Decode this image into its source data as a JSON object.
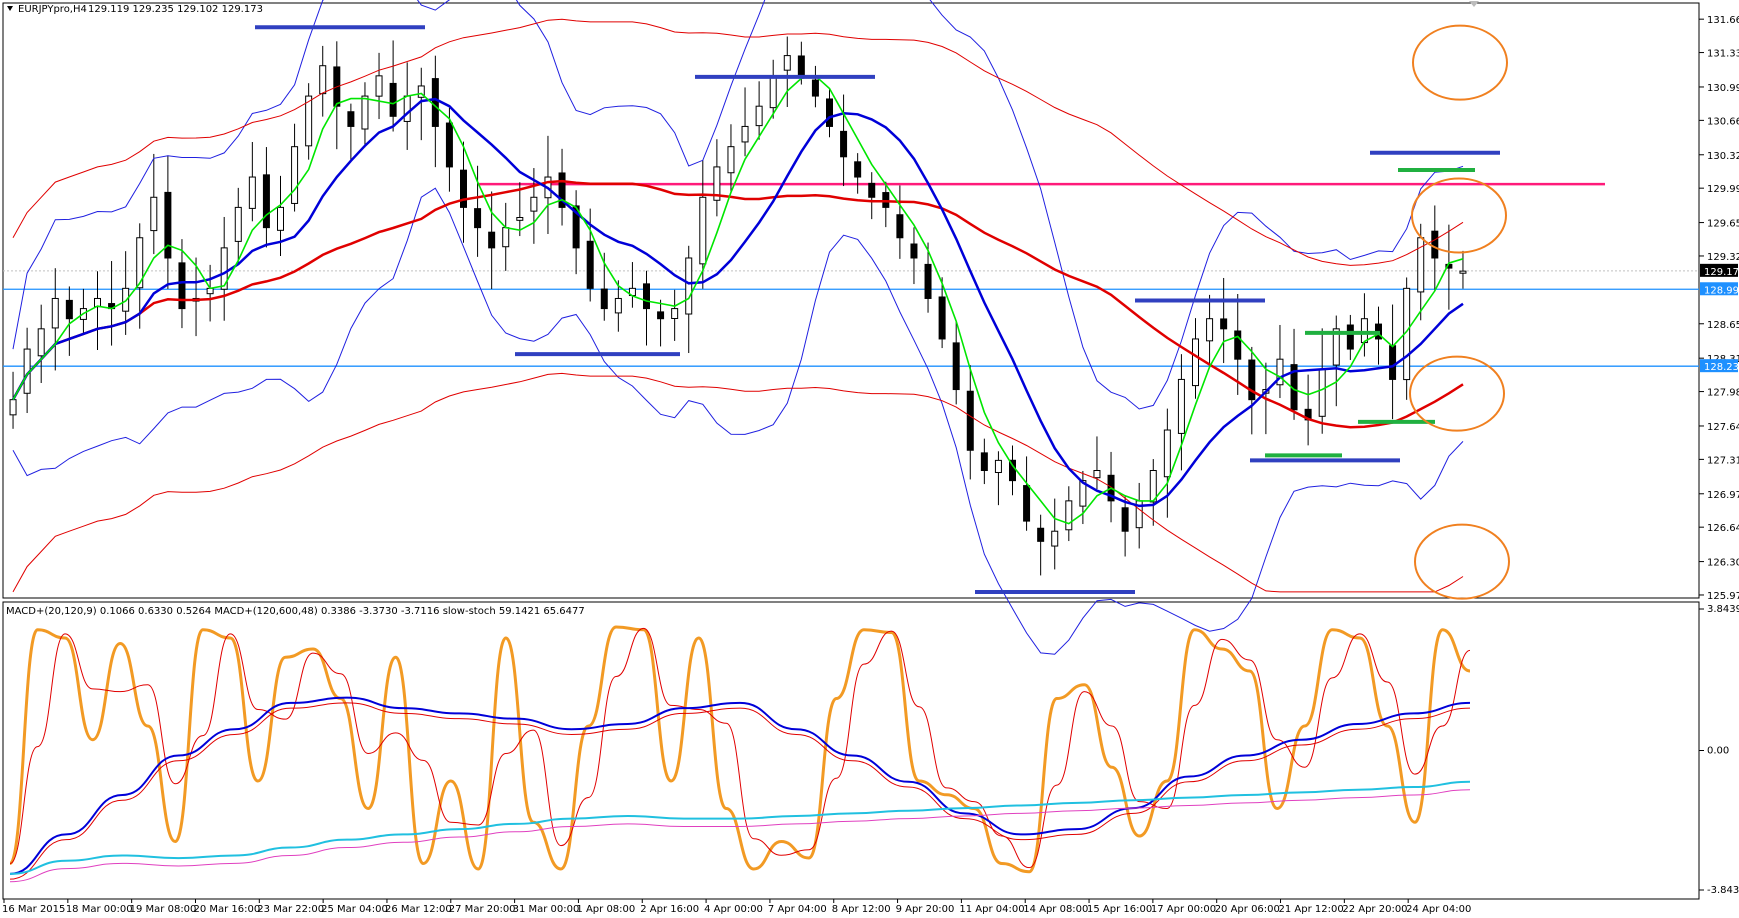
{
  "window": {
    "title": "EURJPYpro,H4",
    "ohlc": "129.119 129.235 129.102 129.173",
    "indicator_title": "MACD+(20,120,9) 0.1066 0.6330 0.5264   MACD+(120,600,48) 0.3386 -3.3730 -3.7116   slow-stoch 59.1421 65.6477"
  },
  "colors": {
    "candle_bull": "#ffffff",
    "candle_bear": "#000000",
    "ma_fast": "#00e600",
    "ma_mid": "#0000d8",
    "ma_slow": "#e00000",
    "bollinger": "#2020e0",
    "envelope": "#e00000",
    "support_line": "#1e90ff",
    "resistance_line": "#ff1a7a",
    "level_marker_blue": "#3040c0",
    "level_marker_green": "#20b040",
    "annotation_circle": "#f08020",
    "stoch_main": "#f29a24",
    "stoch_signal": "#e00000",
    "macd_main": "#0000d8",
    "macd_signal": "#e00000",
    "macd_slow_main": "#20c0e0",
    "macd_slow_signal": "#e040c0"
  },
  "chart_data": [
    {
      "type": "candlestick",
      "symbol": "EURJPYpro",
      "timeframe": "H4",
      "price_labels": [
        "131.660",
        "131.330",
        "130.990",
        "130.660",
        "130.320",
        "129.990",
        "129.650",
        "129.320",
        "128.650",
        "128.310",
        "127.980",
        "127.640",
        "127.310",
        "126.970",
        "126.640",
        "126.300",
        "125.970"
      ],
      "current_price": "129.173",
      "support_levels": [
        "128.991",
        "128.231"
      ],
      "resistance_level": 130.03,
      "ylim": [
        125.95,
        131.8
      ],
      "time_labels": [
        "16 Mar 2015",
        "18 Mar 00:00",
        "19 Mar 08:00",
        "20 Mar 16:00",
        "23 Mar 22:00",
        "25 Mar 04:00",
        "26 Mar 12:00",
        "27 Mar 20:00",
        "31 Mar 00:00",
        "1 Apr 08:00",
        "2 Apr 16:00",
        "4 Apr 00:00",
        "7 Apr 04:00",
        "8 Apr 12:00",
        "9 Apr 20:00",
        "11 Apr 04:00",
        "14 Apr 08:00",
        "15 Apr 16:00",
        "17 Apr 00:00",
        "20 Apr 06:00",
        "21 Apr 12:00",
        "22 Apr 20:00",
        "24 Apr 04:00"
      ],
      "close_path": [
        127.9,
        128.4,
        128.6,
        128.9,
        128.7,
        128.8,
        128.9,
        128.8,
        129.0,
        129.5,
        129.9,
        129.3,
        128.8,
        128.9,
        129.0,
        129.4,
        129.8,
        130.1,
        129.6,
        129.8,
        130.4,
        130.9,
        131.2,
        130.8,
        130.6,
        130.9,
        131.1,
        130.7,
        130.9,
        131.0,
        130.6,
        130.2,
        129.8,
        129.6,
        129.4,
        129.6,
        129.7,
        129.9,
        130.1,
        129.8,
        129.4,
        129.0,
        128.8,
        128.9,
        129.0,
        128.8,
        128.7,
        128.8,
        129.3,
        129.9,
        130.2,
        130.4,
        130.6,
        130.8,
        131.1,
        131.3,
        131.1,
        130.9,
        130.6,
        130.3,
        130.1,
        129.9,
        129.8,
        129.5,
        129.3,
        128.9,
        128.5,
        128.0,
        127.4,
        127.2,
        127.3,
        127.1,
        126.7,
        126.5,
        126.6,
        126.9,
        127.1,
        127.2,
        126.9,
        126.6,
        126.9,
        127.2,
        127.6,
        128.1,
        128.5,
        128.7,
        128.6,
        128.3,
        127.9,
        128.0,
        128.3,
        127.8,
        127.7,
        128.2,
        128.6,
        128.4,
        128.7,
        128.5,
        128.1,
        129.0,
        129.5,
        129.3,
        129.2,
        129.17
      ],
      "stoch": {
        "ylim": [
          0,
          100
        ],
        "k_path": [
          10,
          95,
          92,
          55,
          90,
          60,
          18,
          95,
          92,
          40,
          85,
          88,
          70,
          30,
          85,
          10,
          40,
          8,
          92,
          25,
          8,
          60,
          96,
          95,
          40,
          92,
          30,
          8,
          18,
          12,
          70,
          95,
          94,
          40,
          35,
          30,
          10,
          7,
          70,
          75,
          45,
          20,
          40,
          95,
          88,
          80,
          30,
          60,
          95,
          92,
          60,
          25,
          95,
          80
        ]
      },
      "macd_fast": {
        "main_path": [
          0.05,
          0.2,
          0.35,
          0.5,
          0.6,
          0.7,
          0.72,
          0.68,
          0.66,
          0.64,
          0.6,
          0.62,
          0.68,
          0.7,
          0.6,
          0.5,
          0.4,
          0.28,
          0.2,
          0.22,
          0.3,
          0.42,
          0.5,
          0.56,
          0.62,
          0.66,
          0.7
        ]
      },
      "macd_slow": {
        "main_path": [
          0.05,
          0.1,
          0.12,
          0.11,
          0.12,
          0.15,
          0.18,
          0.2,
          0.22,
          0.24,
          0.26,
          0.27,
          0.26,
          0.26,
          0.27,
          0.28,
          0.29,
          0.3,
          0.31,
          0.32,
          0.33,
          0.34,
          0.35,
          0.36,
          0.37,
          0.38,
          0.4
        ]
      },
      "macd_labels": [
        "3.8439",
        "0.00",
        "-3.8439"
      ]
    }
  ]
}
